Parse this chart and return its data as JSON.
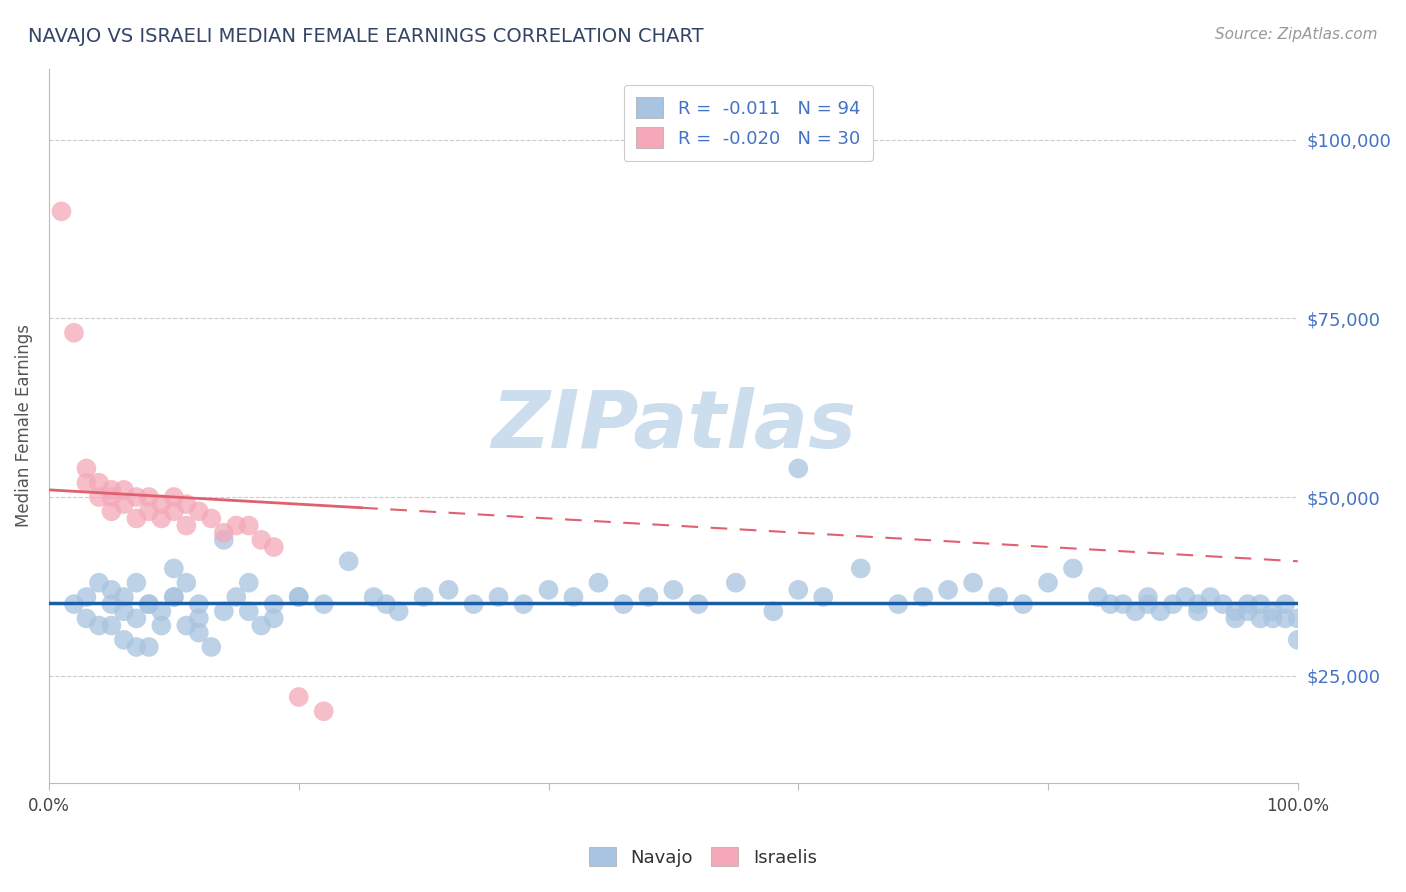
{
  "title": "NAVAJO VS ISRAELI MEDIAN FEMALE EARNINGS CORRELATION CHART",
  "source_text": "Source: ZipAtlas.com",
  "ylabel": "Median Female Earnings",
  "xlim": [
    0.0,
    1.0
  ],
  "ylim": [
    10000,
    110000
  ],
  "yticks": [
    25000,
    50000,
    75000,
    100000
  ],
  "ytick_labels": [
    "$25,000",
    "$50,000",
    "$75,000",
    "$100,000"
  ],
  "xticks": [
    0.0,
    0.2,
    0.4,
    0.6,
    0.8,
    1.0
  ],
  "xtick_labels": [
    "0.0%",
    "",
    "",
    "",
    "",
    "100.0%"
  ],
  "navajo_R": -0.011,
  "navajo_N": 94,
  "israeli_R": -0.02,
  "israeli_N": 30,
  "navajo_color": "#a8c4e0",
  "israeli_color": "#f4a8b8",
  "navajo_line_color": "#1a5ea8",
  "israeli_line_color": "#e06070",
  "watermark": "ZIPatlas",
  "watermark_color": "#ccdded",
  "navajo_x": [
    0.02,
    0.03,
    0.03,
    0.04,
    0.04,
    0.05,
    0.05,
    0.05,
    0.06,
    0.06,
    0.06,
    0.07,
    0.07,
    0.08,
    0.08,
    0.09,
    0.09,
    0.1,
    0.1,
    0.11,
    0.11,
    0.12,
    0.12,
    0.13,
    0.14,
    0.15,
    0.16,
    0.17,
    0.18,
    0.2,
    0.22,
    0.24,
    0.26,
    0.27,
    0.28,
    0.3,
    0.32,
    0.34,
    0.36,
    0.38,
    0.4,
    0.42,
    0.44,
    0.46,
    0.48,
    0.5,
    0.52,
    0.55,
    0.58,
    0.6,
    0.62,
    0.65,
    0.68,
    0.7,
    0.72,
    0.74,
    0.76,
    0.78,
    0.8,
    0.82,
    0.84,
    0.85,
    0.86,
    0.87,
    0.88,
    0.88,
    0.89,
    0.9,
    0.91,
    0.92,
    0.92,
    0.93,
    0.94,
    0.95,
    0.95,
    0.96,
    0.96,
    0.97,
    0.97,
    0.98,
    0.98,
    0.99,
    0.99,
    1.0,
    1.0,
    0.14,
    0.6,
    0.08,
    0.16,
    0.18,
    0.2,
    0.1,
    0.12,
    0.07
  ],
  "navajo_y": [
    35000,
    33000,
    36000,
    32000,
    38000,
    35000,
    32000,
    37000,
    30000,
    34000,
    36000,
    33000,
    38000,
    29000,
    35000,
    32000,
    34000,
    40000,
    36000,
    38000,
    32000,
    35000,
    33000,
    29000,
    34000,
    36000,
    38000,
    32000,
    35000,
    36000,
    35000,
    41000,
    36000,
    35000,
    34000,
    36000,
    37000,
    35000,
    36000,
    35000,
    37000,
    36000,
    38000,
    35000,
    36000,
    37000,
    35000,
    38000,
    34000,
    37000,
    36000,
    40000,
    35000,
    36000,
    37000,
    38000,
    36000,
    35000,
    38000,
    40000,
    36000,
    35000,
    35000,
    34000,
    36000,
    35000,
    34000,
    35000,
    36000,
    34000,
    35000,
    36000,
    35000,
    34000,
    33000,
    35000,
    34000,
    33000,
    35000,
    33000,
    34000,
    33000,
    35000,
    33000,
    30000,
    44000,
    54000,
    35000,
    34000,
    33000,
    36000,
    36000,
    31000,
    29000
  ],
  "israeli_x": [
    0.01,
    0.02,
    0.03,
    0.03,
    0.04,
    0.04,
    0.05,
    0.05,
    0.05,
    0.06,
    0.06,
    0.07,
    0.07,
    0.08,
    0.08,
    0.09,
    0.09,
    0.1,
    0.1,
    0.11,
    0.11,
    0.12,
    0.13,
    0.14,
    0.15,
    0.16,
    0.17,
    0.18,
    0.2,
    0.22
  ],
  "israeli_y": [
    90000,
    73000,
    52000,
    54000,
    52000,
    50000,
    51000,
    48000,
    50000,
    51000,
    49000,
    50000,
    47000,
    50000,
    48000,
    49000,
    47000,
    50000,
    48000,
    49000,
    46000,
    48000,
    47000,
    45000,
    46000,
    46000,
    44000,
    43000,
    22000,
    20000
  ],
  "israeli_line_x0": 0.0,
  "israeli_line_y0": 51000,
  "israeli_line_x1": 1.0,
  "israeli_line_y1": 41000,
  "navajo_line_y": 35200
}
